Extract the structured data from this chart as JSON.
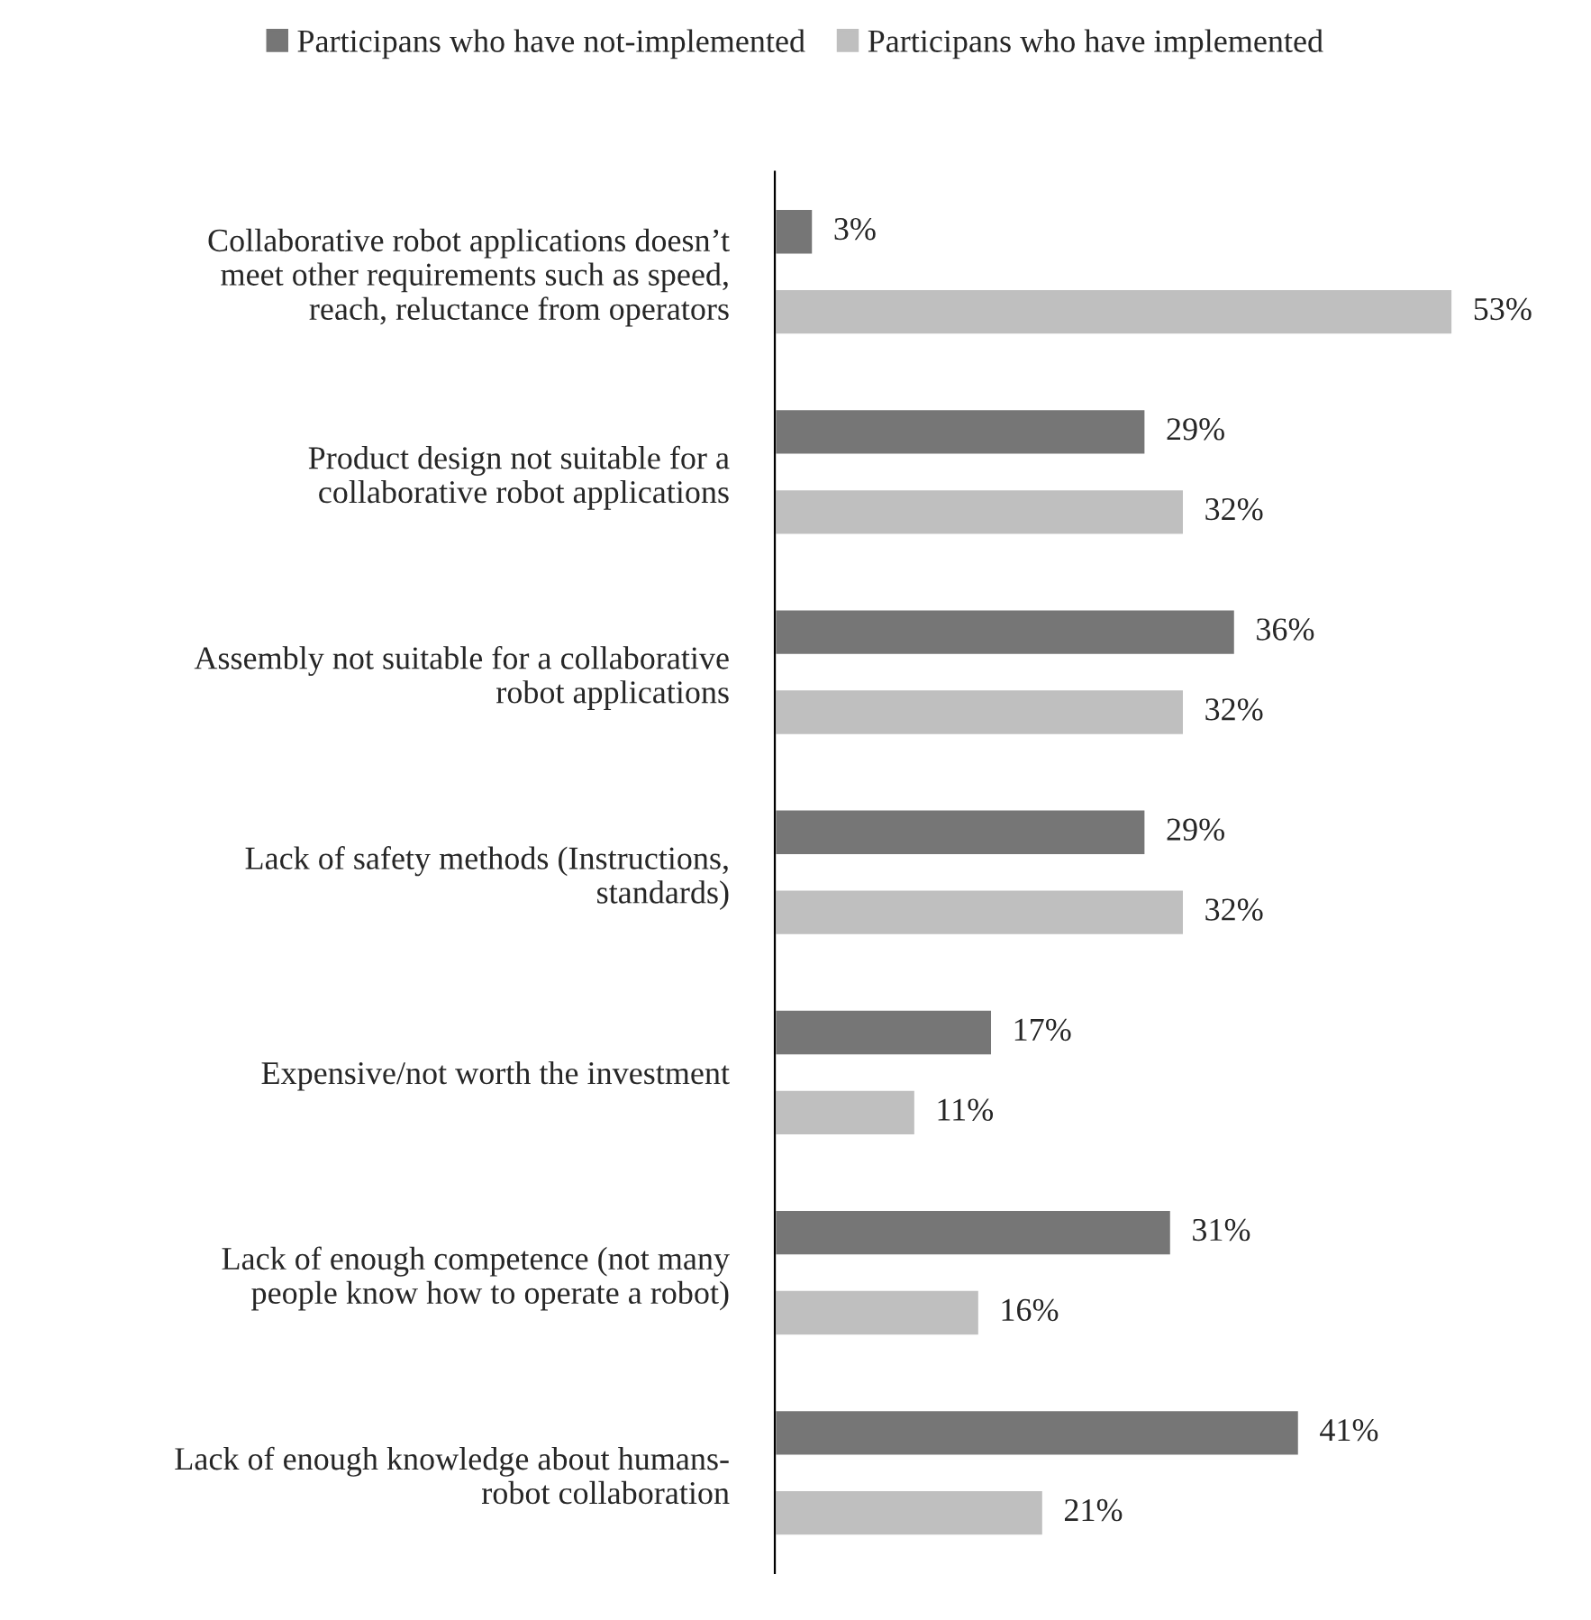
{
  "chart_data": {
    "type": "bar",
    "orientation": "horizontal",
    "categories": [
      "Collaborative robot applications doesn’t\nmeet other requirements such as speed,\nreach, reluctance from operators",
      "Product design not suitable for a\ncollaborative robot applications",
      "Assembly not suitable for a collaborative\nrobot applications",
      "Lack of safety methods (Instructions,\nstandards)",
      "Expensive/not worth the investment",
      "Lack of enough competence (not many\npeople know how to operate a robot)",
      "Lack of enough knowledge about humans-\nrobot collaboration"
    ],
    "series": [
      {
        "name": "Participans who have not-implemented",
        "color": "#767676",
        "values": [
          3,
          29,
          36,
          29,
          17,
          31,
          41
        ],
        "value_labels": [
          "3%",
          "29%",
          "36%",
          "29%",
          "17%",
          "31%",
          "41%"
        ]
      },
      {
        "name": "Participans who have implemented",
        "color": "#bfbfbf",
        "values": [
          53,
          32,
          32,
          32,
          11,
          16,
          21
        ],
        "value_labels": [
          "53%",
          "32%",
          "32%",
          "32%",
          "11%",
          "16%",
          "21%"
        ]
      }
    ],
    "legend": "top",
    "grid": false,
    "tick_labels": "y"
  }
}
